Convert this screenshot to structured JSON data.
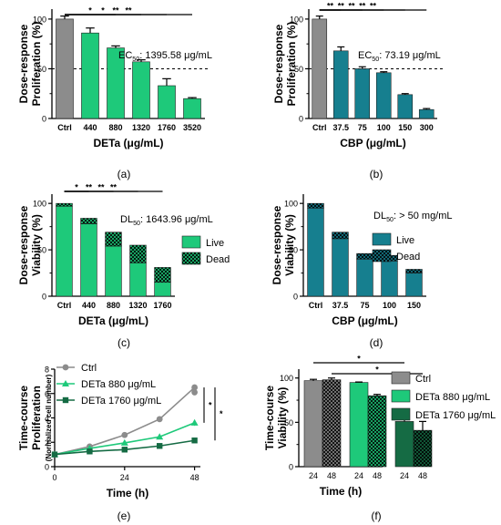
{
  "figure": {
    "panel_labels": [
      "(a)",
      "(b)",
      "(c)",
      "(d)",
      "(e)",
      "(f)"
    ]
  },
  "colors": {
    "grey": "#8c8c8c",
    "green": "#1ec97a",
    "teal": "#167f8f",
    "dark_green": "#156b44",
    "black": "#000000"
  },
  "chart_data": [
    {
      "id": "a",
      "type": "bar",
      "ylabel_lines": [
        "Dose-response",
        "Proliferation (%)"
      ],
      "xlabel": "DETa (μg/mL)",
      "categories": [
        "Ctrl",
        "440",
        "880",
        "1320",
        "1760",
        "3520"
      ],
      "values": [
        100,
        86,
        71,
        57,
        33,
        20
      ],
      "errors": [
        3,
        5,
        2,
        2,
        7,
        1
      ],
      "colors": [
        "#8c8c8c",
        "#1ec97a",
        "#1ec97a",
        "#1ec97a",
        "#1ec97a",
        "#1ec97a"
      ],
      "ylim": [
        0,
        110
      ],
      "yticks": [
        0,
        50,
        100
      ],
      "yticks_minor": [
        25,
        75
      ],
      "reference_line": 50,
      "annotation_prefix": "EC",
      "annotation_sub": "50",
      "annotation_value": ": 1395.58 μg/mL",
      "significance": [
        {
          "from": 0,
          "to": 2,
          "label": "*"
        },
        {
          "from": 0,
          "to": 3,
          "label": "*"
        },
        {
          "from": 0,
          "to": 4,
          "label": "**"
        },
        {
          "from": 0,
          "to": 5,
          "label": "**"
        }
      ]
    },
    {
      "id": "b",
      "type": "bar",
      "ylabel_lines": [
        "Dose-response",
        "Proliferation (%)"
      ],
      "xlabel": "CBP (μg/mL)",
      "categories": [
        "Ctrl",
        "37.5",
        "75",
        "100",
        "150",
        "300"
      ],
      "values": [
        100,
        68,
        50,
        46,
        24,
        9
      ],
      "errors": [
        3,
        4,
        2,
        1,
        1,
        1
      ],
      "colors": [
        "#8c8c8c",
        "#167f8f",
        "#167f8f",
        "#167f8f",
        "#167f8f",
        "#167f8f"
      ],
      "ylim": [
        0,
        110
      ],
      "yticks": [
        0,
        50,
        100
      ],
      "yticks_minor": [
        25,
        75
      ],
      "reference_line": 50,
      "annotation_prefix": "EC",
      "annotation_sub": "50",
      "annotation_value": ": 73.19 μg/mL",
      "significance": [
        {
          "from": 0,
          "to": 1,
          "label": "**"
        },
        {
          "from": 0,
          "to": 2,
          "label": "**"
        },
        {
          "from": 0,
          "to": 3,
          "label": "**"
        },
        {
          "from": 0,
          "to": 4,
          "label": "**"
        },
        {
          "from": 0,
          "to": 5,
          "label": "**"
        }
      ]
    },
    {
      "id": "c",
      "type": "bar",
      "ylabel_lines": [
        "Dose-response",
        "Viability (%)"
      ],
      "xlabel": "DETa (μg/mL)",
      "categories": [
        "Ctrl",
        "440",
        "880",
        "1320",
        "1760"
      ],
      "live": [
        97,
        78,
        54,
        36,
        15
      ],
      "total": [
        100,
        84,
        69,
        55,
        31
      ],
      "live_color": "#1ec97a",
      "ylim": [
        0,
        110
      ],
      "yticks": [
        0,
        50,
        100
      ],
      "yticks_minor": [
        25,
        75
      ],
      "legend": [
        "Live",
        "Dead"
      ],
      "annotation_prefix": "DL",
      "annotation_sub": "50",
      "annotation_value": ": 1643.96 μg/mL",
      "significance": [
        {
          "from": 0,
          "to": 1,
          "label": "*"
        },
        {
          "from": 0,
          "to": 2,
          "label": "**"
        },
        {
          "from": 0,
          "to": 3,
          "label": "**"
        },
        {
          "from": 0,
          "to": 4,
          "label": "**"
        }
      ]
    },
    {
      "id": "d",
      "type": "bar",
      "ylabel_lines": [
        "Dose-response",
        "Viability (%)"
      ],
      "xlabel": "CBP (μg/mL)",
      "categories": [
        "Ctrl",
        "37.5",
        "75",
        "100",
        "150"
      ],
      "live": [
        95,
        62,
        40,
        38,
        25
      ],
      "total": [
        100,
        69,
        46,
        44,
        29
      ],
      "live_color": "#167f8f",
      "ylim": [
        0,
        110
      ],
      "yticks": [
        0,
        50,
        100
      ],
      "yticks_minor": [
        25,
        75
      ],
      "legend": [
        "Live",
        "Dead"
      ],
      "annotation_prefix": "DL",
      "annotation_sub": "50",
      "annotation_value": ": > 50 mg/mL",
      "significance": []
    },
    {
      "id": "e",
      "type": "line",
      "ylabel_lines": [
        "Time-course",
        "Proliferation"
      ],
      "ylabel_small": "(Normalized cell number)",
      "xlabel": "Time (h)",
      "xlim": [
        0,
        50
      ],
      "xticks": [
        0,
        24,
        48
      ],
      "ylim": [
        0,
        8
      ],
      "yticks": [
        0,
        2,
        4,
        6,
        8
      ],
      "series": [
        {
          "name": "Ctrl",
          "marker": "circle",
          "color": "#8c8c8c",
          "points": [
            [
              0,
              1.0
            ],
            [
              12,
              1.65
            ],
            [
              24,
              2.6
            ],
            [
              36,
              3.9
            ],
            [
              48,
              6.5
            ]
          ],
          "extra": [
            [
              48,
              6.1
            ]
          ],
          "errors": [
            0.1,
            0.1,
            0.15,
            0.2,
            0.2
          ]
        },
        {
          "name": "DETa 880 μg/mL",
          "marker": "triangle",
          "color": "#1ec97a",
          "points": [
            [
              0,
              1.0
            ],
            [
              12,
              1.5
            ],
            [
              24,
              1.95
            ],
            [
              36,
              2.45
            ],
            [
              48,
              3.6
            ]
          ],
          "errors": [
            0.1,
            0.1,
            0.1,
            0.15,
            0.25
          ]
        },
        {
          "name": "DETa 1760 μg/mL",
          "marker": "square",
          "color": "#156b44",
          "points": [
            [
              0,
              1.0
            ],
            [
              12,
              1.25
            ],
            [
              24,
              1.4
            ],
            [
              36,
              1.7
            ],
            [
              48,
              2.15
            ]
          ],
          "errors": [
            0.1,
            0.1,
            0.1,
            0.1,
            0.2
          ]
        }
      ],
      "significance_labels": [
        "*",
        "*"
      ]
    },
    {
      "id": "f",
      "type": "bar",
      "ylabel_lines": [
        "Time-course",
        "Viability (%)"
      ],
      "xlabel": "Time (h)",
      "ylim": [
        0,
        110
      ],
      "yticks": [
        0,
        50,
        100
      ],
      "yticks_minor": [
        25,
        75
      ],
      "groups": [
        {
          "name": "Ctrl",
          "color": "#8c8c8c",
          "bars": [
            {
              "x": "24",
              "value": 97,
              "error": 1.5,
              "hatched": false
            },
            {
              "x": "48",
              "value": 98,
              "error": 2,
              "hatched": true
            }
          ]
        },
        {
          "name": "DETa 880 μg/mL",
          "color": "#1ec97a",
          "bars": [
            {
              "x": "24",
              "value": 95,
              "error": 0.5,
              "hatched": false
            },
            {
              "x": "48",
              "value": 80,
              "error": 1.5,
              "hatched": true
            }
          ]
        },
        {
          "name": "DETa 1760 μg/mL",
          "color": "#156b44",
          "bars": [
            {
              "x": "24",
              "value": 51,
              "error": 8,
              "hatched": false
            },
            {
              "x": "48",
              "value": 41,
              "error": 10,
              "hatched": true
            }
          ]
        }
      ],
      "significance_labels": [
        "*",
        "*"
      ]
    }
  ]
}
